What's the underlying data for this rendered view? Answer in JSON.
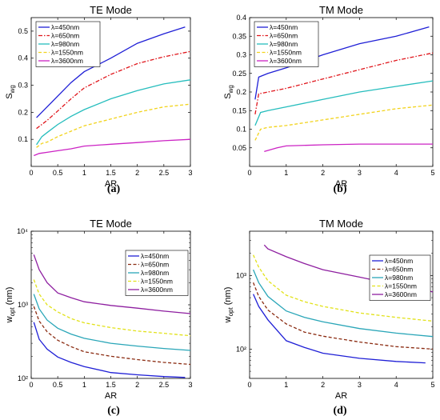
{
  "chart_data": [
    {
      "type": "line",
      "title": "TE Mode",
      "xlabel": "AR",
      "ylabel": "S",
      "ylabel_sub": "wg",
      "caption": "(a)",
      "x_scale": "linear",
      "y_scale": "linear",
      "xlim": [
        0,
        3
      ],
      "ylim": [
        0,
        0.55
      ],
      "xticks": [
        0,
        0.5,
        1,
        1.5,
        2,
        2.5,
        3
      ],
      "xtick_labels": [
        "0",
        "0.5",
        "1",
        "1.5",
        "2",
        "2.5",
        "3"
      ],
      "yticks": [
        0.1,
        0.2,
        0.3,
        0.4,
        0.5
      ],
      "ytick_labels": [
        "0.1",
        "0.2",
        "0.3",
        "0.4",
        "0.5"
      ],
      "legend_position": "top-left",
      "series": [
        {
          "name": "λ=450nm",
          "color": "#1f1fd6",
          "dash": "solid",
          "x": [
            0.1,
            0.3,
            0.5,
            0.75,
            1.0,
            1.5,
            2.0,
            2.5,
            2.9
          ],
          "y": [
            0.18,
            0.22,
            0.26,
            0.31,
            0.35,
            0.4,
            0.455,
            0.49,
            0.515
          ]
        },
        {
          "name": "λ=650nm",
          "color": "#e0151b",
          "dash": "dashdot",
          "x": [
            0.1,
            0.3,
            0.5,
            0.75,
            1.0,
            1.5,
            2.0,
            2.5,
            3.0
          ],
          "y": [
            0.14,
            0.17,
            0.205,
            0.25,
            0.29,
            0.34,
            0.38,
            0.405,
            0.425
          ]
        },
        {
          "name": "λ=980nm",
          "color": "#25bdbd",
          "dash": "solid",
          "x": [
            0.1,
            0.2,
            0.3,
            0.5,
            0.75,
            1.0,
            1.5,
            2.0,
            2.5,
            3.0
          ],
          "y": [
            0.08,
            0.11,
            0.125,
            0.155,
            0.185,
            0.21,
            0.25,
            0.28,
            0.305,
            0.32
          ]
        },
        {
          "name": "λ=1550nm",
          "color": "#f2d31b",
          "dash": "dashed",
          "x": [
            0.1,
            0.2,
            0.3,
            0.5,
            0.75,
            1.0,
            1.5,
            2.0,
            2.5,
            3.0
          ],
          "y": [
            0.07,
            0.085,
            0.09,
            0.11,
            0.13,
            0.15,
            0.175,
            0.2,
            0.22,
            0.23
          ]
        },
        {
          "name": "λ=3600nm",
          "color": "#cc23c4",
          "dash": "solid",
          "x": [
            0.05,
            0.15,
            0.3,
            0.5,
            0.75,
            1.0,
            1.5,
            2.0,
            2.5,
            3.0
          ],
          "y": [
            0.04,
            0.048,
            0.052,
            0.058,
            0.065,
            0.075,
            0.082,
            0.088,
            0.095,
            0.1
          ]
        }
      ]
    },
    {
      "type": "line",
      "title": "TM Mode",
      "xlabel": "AR",
      "ylabel": "S",
      "ylabel_sub": "wg",
      "caption": "(b)",
      "x_scale": "linear",
      "y_scale": "linear",
      "xlim": [
        0,
        5
      ],
      "ylim": [
        0,
        0.4
      ],
      "xticks": [
        0,
        1,
        2,
        3,
        4,
        5
      ],
      "xtick_labels": [
        "0",
        "1",
        "2",
        "3",
        "4",
        "5"
      ],
      "yticks": [
        0.05,
        0.1,
        0.15,
        0.2,
        0.25,
        0.3,
        0.35,
        0.4
      ],
      "ytick_labels": [
        "0.05",
        "0.1",
        "0.15",
        "0.2",
        "0.25",
        "0.3",
        "0.35",
        "0.4"
      ],
      "legend_position": "top-left",
      "series": [
        {
          "name": "λ=450nm",
          "color": "#1f1fd6",
          "dash": "solid",
          "x": [
            0.15,
            0.25,
            0.5,
            1.0,
            2.0,
            3.0,
            4.0,
            4.9
          ],
          "y": [
            0.18,
            0.24,
            0.25,
            0.265,
            0.3,
            0.33,
            0.35,
            0.375
          ]
        },
        {
          "name": "λ=650nm",
          "color": "#e0151b",
          "dash": "dashdot",
          "x": [
            0.15,
            0.25,
            0.5,
            1.0,
            2.0,
            3.0,
            4.0,
            5.0
          ],
          "y": [
            0.14,
            0.195,
            0.2,
            0.21,
            0.235,
            0.26,
            0.285,
            0.305
          ]
        },
        {
          "name": "λ=980nm",
          "color": "#25bdbd",
          "dash": "solid",
          "x": [
            0.15,
            0.3,
            0.5,
            1.0,
            2.0,
            3.0,
            4.0,
            5.0
          ],
          "y": [
            0.11,
            0.145,
            0.15,
            0.16,
            0.18,
            0.2,
            0.215,
            0.23
          ]
        },
        {
          "name": "λ=1550nm",
          "color": "#f2d31b",
          "dash": "dashed",
          "x": [
            0.15,
            0.3,
            0.5,
            1.0,
            2.0,
            3.0,
            4.0,
            5.0
          ],
          "y": [
            0.07,
            0.1,
            0.105,
            0.11,
            0.125,
            0.14,
            0.155,
            0.165
          ]
        },
        {
          "name": "λ=3600nm",
          "color": "#cc23c4",
          "dash": "solid",
          "x": [
            0.4,
            0.75,
            1.0,
            2.0,
            3.0,
            4.0,
            5.0
          ],
          "y": [
            0.04,
            0.05,
            0.055,
            0.058,
            0.06,
            0.06,
            0.06
          ]
        }
      ]
    },
    {
      "type": "line",
      "title": "TE Mode",
      "xlabel": "AR",
      "ylabel": "w",
      "ylabel_sub": "opt",
      "ylabel_suffix": " (nm)",
      "caption": "(c)",
      "x_scale": "linear",
      "y_scale": "log",
      "xlim": [
        0,
        3
      ],
      "ylim": [
        100,
        10000
      ],
      "xticks": [
        0,
        0.5,
        1,
        1.5,
        2,
        2.5,
        3
      ],
      "xtick_labels": [
        "0",
        "0.5",
        "1",
        "1.5",
        "2",
        "2.5",
        "3"
      ],
      "yticks": [
        100,
        1000,
        10000
      ],
      "ytick_labels": [
        "10²",
        "10³",
        "10⁴"
      ],
      "legend_position": "top-right",
      "series": [
        {
          "name": "λ=450nm",
          "color": "#1f1fd6",
          "dash": "solid",
          "x": [
            0.05,
            0.15,
            0.3,
            0.5,
            0.75,
            1.0,
            1.5,
            2.0,
            2.5,
            2.9
          ],
          "y": [
            580,
            340,
            250,
            195,
            165,
            145,
            120,
            112,
            106,
            103
          ]
        },
        {
          "name": "λ=650nm",
          "color": "#8b2c12",
          "dash": "dashed",
          "x": [
            0.05,
            0.15,
            0.3,
            0.5,
            0.75,
            1.0,
            1.5,
            2.0,
            2.5,
            3.0
          ],
          "y": [
            950,
            600,
            430,
            330,
            270,
            230,
            200,
            180,
            165,
            155
          ]
        },
        {
          "name": "λ=980nm",
          "color": "#2aa6b8",
          "dash": "solid",
          "x": [
            0.05,
            0.15,
            0.3,
            0.5,
            0.75,
            1.0,
            1.5,
            2.0,
            2.5,
            3.0
          ],
          "y": [
            1400,
            880,
            620,
            480,
            400,
            350,
            300,
            275,
            255,
            240
          ]
        },
        {
          "name": "λ=1550nm",
          "color": "#e2e21a",
          "dash": "dashed",
          "x": [
            0.05,
            0.15,
            0.3,
            0.5,
            0.75,
            1.0,
            1.5,
            2.0,
            2.5,
            3.0
          ],
          "y": [
            2200,
            1400,
            1000,
            800,
            650,
            570,
            490,
            440,
            410,
            380
          ]
        },
        {
          "name": "λ=3600nm",
          "color": "#8e1fa0",
          "dash": "solid",
          "x": [
            0.05,
            0.15,
            0.3,
            0.5,
            0.75,
            1.0,
            1.5,
            2.0,
            2.5,
            3.0
          ],
          "y": [
            4800,
            3000,
            2000,
            1450,
            1250,
            1100,
            980,
            900,
            820,
            760
          ]
        }
      ]
    },
    {
      "type": "line",
      "title": "TM Mode",
      "xlabel": "AR",
      "ylabel": "w",
      "ylabel_sub": "opt",
      "ylabel_suffix": " (nm)",
      "caption": "(d)",
      "x_scale": "linear",
      "y_scale": "log",
      "xlim": [
        0,
        5
      ],
      "ylim": [
        40,
        4000
      ],
      "xticks": [
        0,
        1,
        2,
        3,
        4,
        5
      ],
      "xtick_labels": [
        "0",
        "1",
        "2",
        "3",
        "4",
        "5"
      ],
      "yticks": [
        100,
        1000
      ],
      "ytick_labels": [
        "10²",
        "10³"
      ],
      "legend_position": "top-right",
      "series": [
        {
          "name": "λ=450nm",
          "color": "#1f1fd6",
          "dash": "solid",
          "x": [
            0.1,
            0.25,
            0.5,
            1.0,
            1.5,
            2.0,
            3.0,
            4.0,
            4.8
          ],
          "y": [
            560,
            380,
            250,
            130,
            105,
            88,
            75,
            68,
            65
          ]
        },
        {
          "name": "λ=650nm",
          "color": "#8b2c12",
          "dash": "dashed",
          "x": [
            0.1,
            0.25,
            0.5,
            1.0,
            1.5,
            2.0,
            3.0,
            4.0,
            5.0
          ],
          "y": [
            800,
            520,
            340,
            220,
            170,
            150,
            125,
            108,
            100
          ]
        },
        {
          "name": "λ=980nm",
          "color": "#2aa6b8",
          "dash": "solid",
          "x": [
            0.1,
            0.25,
            0.5,
            1.0,
            1.5,
            2.0,
            3.0,
            4.0,
            5.0
          ],
          "y": [
            1200,
            800,
            520,
            330,
            270,
            235,
            190,
            165,
            148
          ]
        },
        {
          "name": "λ=1550nm",
          "color": "#e2e21a",
          "dash": "dashed",
          "x": [
            0.1,
            0.25,
            0.5,
            1.0,
            1.5,
            2.0,
            3.0,
            4.0,
            5.0
          ],
          "y": [
            1900,
            1300,
            850,
            540,
            440,
            380,
            310,
            270,
            240
          ]
        },
        {
          "name": "λ=3600nm",
          "color": "#8e1fa0",
          "dash": "solid",
          "x": [
            0.4,
            0.5,
            1.0,
            1.5,
            2.0,
            3.0,
            4.0,
            5.0
          ],
          "y": [
            2600,
            2300,
            1800,
            1450,
            1200,
            950,
            750,
            600
          ]
        }
      ]
    }
  ]
}
